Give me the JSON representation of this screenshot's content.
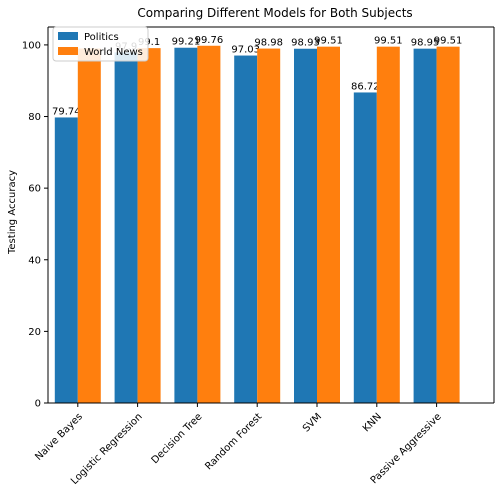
{
  "chart_data": {
    "type": "bar",
    "title": "Comparing Different Models for Both Subjects",
    "xlabel": "",
    "ylabel": "Testing Accuracy",
    "ylim": [
      0,
      105
    ],
    "yticks": [
      0,
      20,
      40,
      60,
      80,
      100
    ],
    "grid": false,
    "legend_position": "top-left",
    "categories": [
      "Naive Bayes",
      "Logistic Regression",
      "Decision Tree",
      "Random Forest",
      "SVM",
      "KNN",
      "Passive Aggressive"
    ],
    "series": [
      {
        "name": "Politics",
        "color": "#1f77b4",
        "values": [
          79.74,
          97.9,
          99.21,
          97.03,
          98.93,
          86.72,
          98.95
        ],
        "labels": [
          "79.74",
          "97.9",
          "99.21",
          "97.03",
          "98.93",
          "86.72",
          "98.95"
        ]
      },
      {
        "name": "World News",
        "color": "#ff7f0e",
        "values": [
          99.0,
          99.1,
          99.76,
          98.98,
          99.51,
          99.51,
          99.51
        ],
        "labels": [
          "",
          "99.1",
          "99.76",
          "98.98",
          "99.51",
          "99.51",
          "99.51"
        ]
      }
    ]
  }
}
